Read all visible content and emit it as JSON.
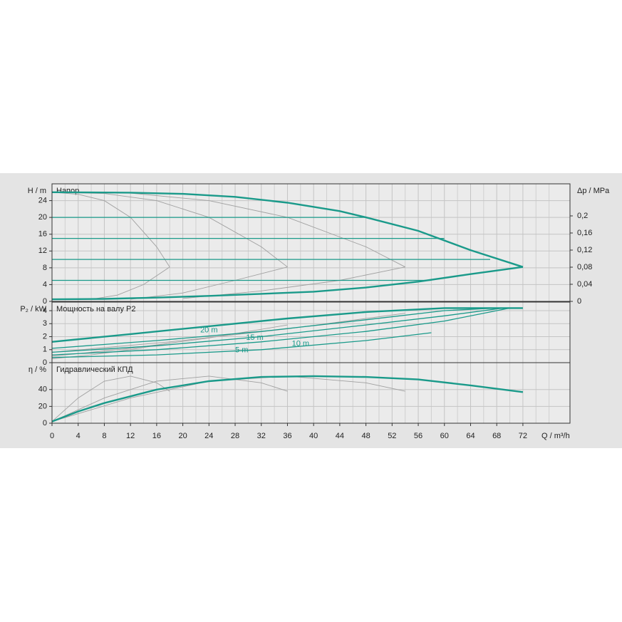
{
  "chart_data": [
    {
      "type": "line",
      "annotation": "Напор",
      "ylabel": "H / m",
      "y2label": "Δp / MPa",
      "xlim": [
        0,
        79.2
      ],
      "xticks": [
        0,
        4,
        8,
        12,
        16,
        20,
        24,
        28,
        32,
        36,
        40,
        44,
        48,
        52,
        56,
        60,
        64,
        68,
        72
      ],
      "ylim": [
        0,
        28
      ],
      "yticks": [
        0,
        4,
        8,
        12,
        16,
        20,
        24
      ],
      "y2lim": [
        0,
        0.275
      ],
      "y2ticks": [
        0,
        {
          "value": 0.04,
          "label": "0,04"
        },
        {
          "value": 0.08,
          "label": "0,08"
        },
        {
          "value": 0.12,
          "label": "0,12"
        },
        {
          "value": 0.16,
          "label": "0,16"
        },
        {
          "value": 0.2,
          "label": "0,2"
        }
      ],
      "grid": true,
      "series": [
        {
          "color": "#a0a0a0",
          "x": [
            0,
            4,
            8,
            12,
            16,
            18
          ],
          "values": [
            26,
            25.5,
            24,
            20,
            13,
            8.2
          ]
        },
        {
          "color": "#a0a0a0",
          "x": [
            6,
            10,
            14,
            18
          ],
          "values": [
            0.5,
            1.5,
            4,
            8.2
          ]
        },
        {
          "color": "#a0a0a0",
          "x": [
            0,
            8,
            16,
            24,
            32,
            36
          ],
          "values": [
            26,
            25.7,
            24,
            20,
            13,
            8.2
          ]
        },
        {
          "color": "#a0a0a0",
          "x": [
            12,
            20,
            28,
            36
          ],
          "values": [
            0.5,
            2,
            5,
            8.2
          ]
        },
        {
          "color": "#a0a0a0",
          "x": [
            0,
            12,
            24,
            36,
            48,
            54
          ],
          "values": [
            26,
            25.8,
            24,
            20,
            13,
            8.2
          ]
        },
        {
          "color": "#a0a0a0",
          "x": [
            20,
            32,
            44,
            54
          ],
          "values": [
            0.7,
            2.5,
            5,
            8.2
          ]
        },
        {
          "color": "#1a9a8a",
          "x": [
            0,
            48
          ],
          "values": [
            20,
            20
          ]
        },
        {
          "color": "#1a9a8a",
          "x": [
            0,
            60
          ],
          "values": [
            15,
            15
          ]
        },
        {
          "color": "#1a9a8a",
          "x": [
            0,
            67
          ],
          "values": [
            10,
            10
          ]
        },
        {
          "color": "#1a9a8a",
          "x": [
            0,
            58
          ],
          "values": [
            5,
            5
          ]
        },
        {
          "color": "#1a9a8a",
          "x": [
            0,
            12,
            20,
            28,
            36,
            44,
            48,
            56,
            64,
            72
          ],
          "values": [
            26,
            25.9,
            25.6,
            24.9,
            23.5,
            21.5,
            20,
            16.8,
            12.2,
            8.2
          ]
        },
        {
          "color": "#1a9a8a",
          "x": [
            0,
            8,
            16,
            24,
            32,
            40,
            48,
            56,
            64,
            72
          ],
          "values": [
            0.5,
            0.6,
            0.9,
            1.3,
            1.8,
            2.3,
            3.3,
            4.7,
            6.5,
            8.2
          ]
        }
      ]
    },
    {
      "type": "line",
      "annotation": "Мощность на валу P2",
      "ylabel": "P₂ / kW",
      "xlim": [
        0,
        79.2
      ],
      "xticks": [
        0,
        4,
        8,
        12,
        16,
        20,
        24,
        28,
        32,
        36,
        40,
        44,
        48,
        52,
        56,
        60,
        64,
        68,
        72
      ],
      "ylim": [
        0,
        4.66
      ],
      "yticks": [
        0,
        1,
        2,
        3,
        4
      ],
      "grid": true,
      "curve_labels": [
        "20 m",
        "15 m",
        "10 m",
        "5 m"
      ],
      "series": [
        {
          "color": "#a0a0a0",
          "x": [
            0,
            6,
            12,
            18
          ],
          "values": [
            0.3,
            0.6,
            1.0,
            1.5
          ]
        },
        {
          "color": "#a0a0a0",
          "x": [
            0,
            12,
            24,
            36
          ],
          "values": [
            0.5,
            1.1,
            1.9,
            2.9
          ]
        },
        {
          "color": "#a0a0a0",
          "x": [
            0,
            18,
            36,
            54
          ],
          "values": [
            0.8,
            1.6,
            2.6,
            3.8
          ]
        },
        {
          "color": "#1a9a8a",
          "x": [
            0,
            16,
            32,
            48,
            60,
            68
          ],
          "values": [
            1.1,
            1.7,
            2.4,
            3.3,
            4.0,
            4.2
          ]
        },
        {
          "color": "#1a9a8a",
          "x": [
            0,
            16,
            32,
            48,
            60,
            69
          ],
          "values": [
            0.8,
            1.3,
            2.0,
            2.9,
            3.6,
            4.2
          ]
        },
        {
          "color": "#1a9a8a",
          "x": [
            0,
            16,
            32,
            48,
            60,
            70
          ],
          "values": [
            0.6,
            1.0,
            1.6,
            2.4,
            3.2,
            4.2
          ]
        },
        {
          "color": "#1a9a8a",
          "x": [
            0,
            16,
            32,
            48,
            58
          ],
          "values": [
            0.4,
            0.6,
            1.0,
            1.7,
            2.3
          ]
        },
        {
          "color": "#1a9a8a",
          "x": [
            0,
            12,
            24,
            36,
            48,
            60,
            72
          ],
          "values": [
            1.6,
            2.2,
            2.8,
            3.4,
            3.9,
            4.2,
            4.2
          ]
        }
      ]
    },
    {
      "type": "line",
      "annotation": "Гидравлический КПД",
      "ylabel": "η / %",
      "xlabel": "Q / m³/h",
      "xlim": [
        0,
        79.2
      ],
      "xticks": [
        0,
        4,
        8,
        12,
        16,
        20,
        24,
        28,
        32,
        36,
        40,
        44,
        48,
        52,
        56,
        60,
        64,
        68,
        72
      ],
      "ylim": [
        0,
        72
      ],
      "yticks": [
        0,
        20,
        40
      ],
      "grid": true,
      "series": [
        {
          "color": "#a0a0a0",
          "x": [
            0,
            4,
            8,
            12,
            16,
            18
          ],
          "values": [
            2,
            30,
            50,
            56,
            48,
            38
          ]
        },
        {
          "color": "#a0a0a0",
          "x": [
            0,
            8,
            16,
            24,
            32,
            36
          ],
          "values": [
            2,
            30,
            50,
            56,
            48,
            38
          ]
        },
        {
          "color": "#a0a0a0",
          "x": [
            0,
            12,
            24,
            36,
            48,
            54
          ],
          "values": [
            2,
            30,
            50,
            56,
            48,
            38
          ]
        },
        {
          "color": "#1a9a8a",
          "x": [
            0,
            4,
            8,
            16,
            24,
            32,
            40,
            48,
            56,
            64,
            72
          ],
          "values": [
            2,
            14,
            24,
            40,
            50,
            55,
            56,
            55,
            52,
            45,
            37
          ]
        }
      ]
    }
  ]
}
